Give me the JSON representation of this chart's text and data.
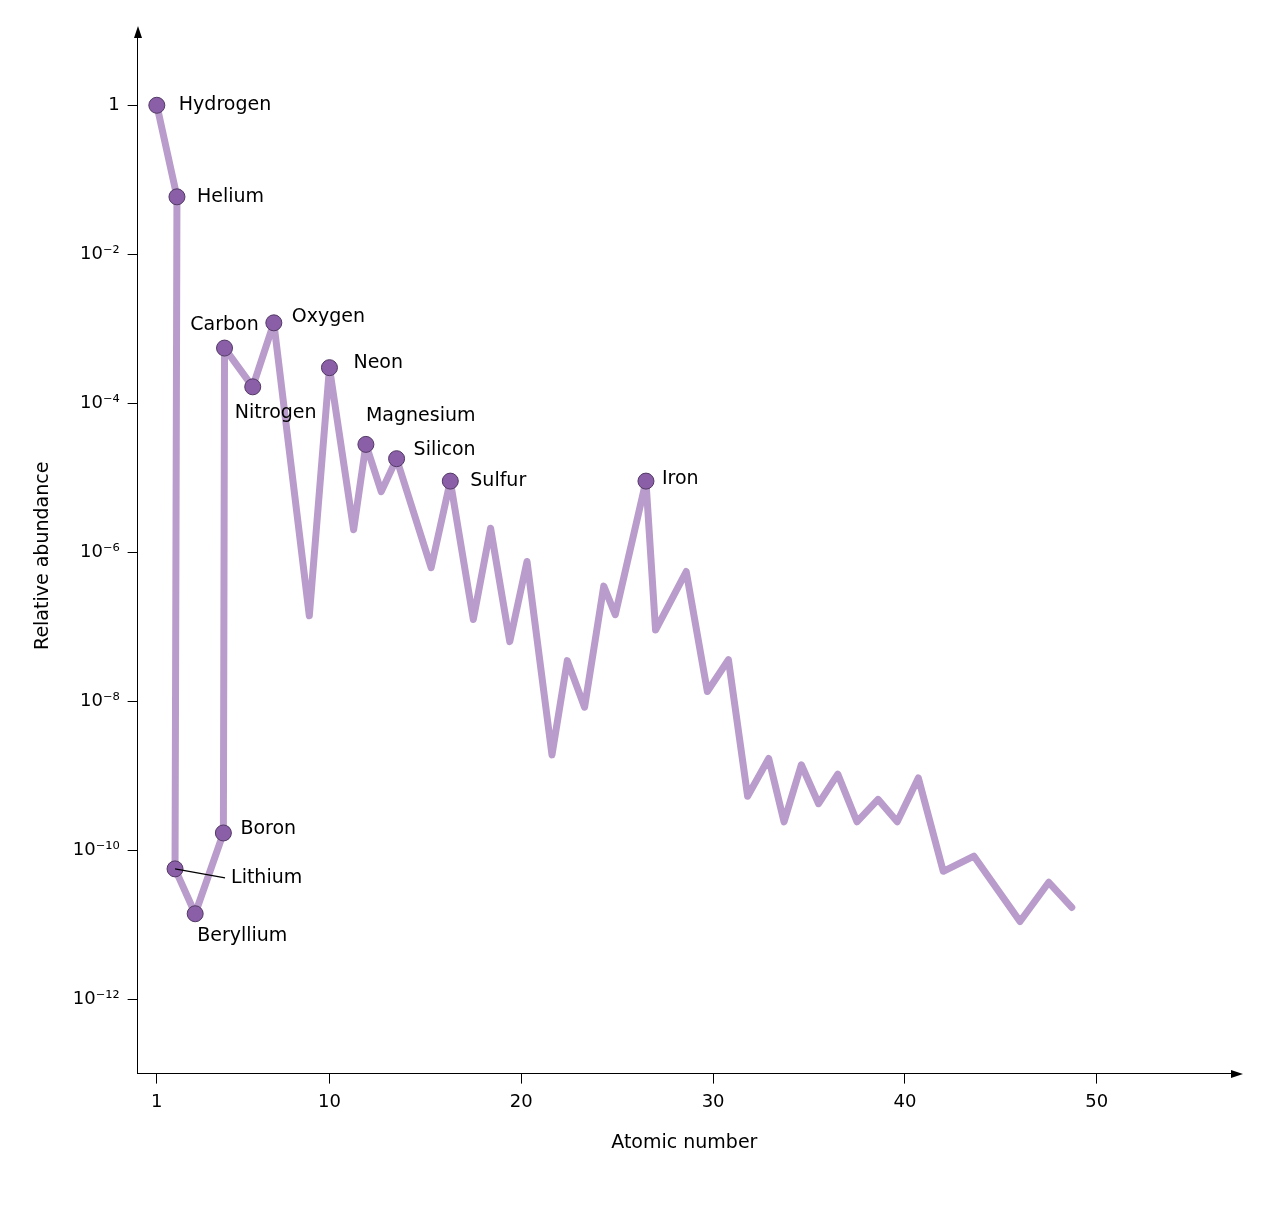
{
  "chart_data": {
    "type": "line",
    "xlabel": "Atomic number",
    "ylabel": "Relative abundance",
    "log": "y",
    "grid": false,
    "legend": false,
    "line_style": "solid",
    "xlim": [
      0,
      57
    ],
    "xticks": [
      1,
      10,
      20,
      30,
      40,
      50
    ],
    "ylim": [
      1e-13,
      8
    ],
    "yticks": [
      {
        "value": 1,
        "label": "1"
      },
      {
        "value": 0.01,
        "label": "10⁻²"
      },
      {
        "value": 0.0001,
        "label": "10⁻⁴"
      },
      {
        "value": 1e-06,
        "label": "10⁻⁶"
      },
      {
        "value": 1e-08,
        "label": "10⁻⁸"
      },
      {
        "value": 1e-10,
        "label": "10⁻¹⁰"
      },
      {
        "value": 1e-12,
        "label": "10⁻¹²"
      }
    ],
    "series": [
      {
        "type": "scatter",
        "marker": "circle",
        "color": "#8a5fa8",
        "x": [
          1.0,
          2.05,
          1.95,
          3.0,
          4.47,
          4.53,
          6.0,
          7.1,
          10,
          11.9,
          13.5,
          16.3,
          26.5
        ],
        "values": [
          1,
          0.059,
          5.6e-11,
          1.4e-11,
          1.7e-10,
          0.00055,
          0.000166,
          0.0012,
          0.0003,
          2.8e-05,
          1.8e-05,
          9e-06,
          9e-06
        ]
      },
      {
        "color": "#b99ccb",
        "marker": "none",
        "x": [
          1.0,
          2.05,
          1.95,
          3.0,
          4.47,
          4.53,
          6.0,
          7.1,
          8.95,
          10,
          11.26,
          11.9,
          12.7,
          13.5,
          15.3,
          16.3,
          17.5,
          18.4,
          19.4,
          20.3,
          21.6,
          22.4,
          23.3,
          24.3,
          24.9,
          26.5,
          27.0,
          28.6,
          29.7,
          30.8,
          31.8,
          32.9,
          33.7,
          34.6,
          35.5,
          36.5,
          37.5,
          38.6,
          39.6,
          40.7,
          42.0,
          43.6,
          46.0,
          47.5,
          48.7
        ],
        "values": [
          1,
          0.059,
          5.6e-11,
          1.4e-11,
          1.7e-10,
          0.00055,
          0.000166,
          0.0012,
          1.4e-07,
          0.0003,
          2e-06,
          2.8e-05,
          6.5e-06,
          1.8e-05,
          6.2e-07,
          9e-06,
          1.25e-07,
          2.1e-06,
          6.3e-08,
          7.5e-07,
          1.9e-09,
          3.5e-08,
          8.3e-09,
          3.5e-07,
          1.45e-07,
          9e-06,
          9e-08,
          5.5e-07,
          1.35e-08,
          3.6e-08,
          5.3e-10,
          1.7e-09,
          2.4e-10,
          1.4e-09,
          4.2e-10,
          1.05e-09,
          2.4e-10,
          4.8e-10,
          2.4e-10,
          9.3e-10,
          5.2e-11,
          8.3e-11,
          1.1e-11,
          3.7e-11,
          1.7e-11
        ]
      }
    ],
    "annotations": [
      {
        "text": "Hydrogen",
        "x": 1.0,
        "y": 1
      },
      {
        "text": "Helium",
        "x": 2.05,
        "y": 0.059
      },
      {
        "text": "Carbon",
        "x": 4.53,
        "y": 0.00055
      },
      {
        "text": "Oxygen",
        "x": 7.1,
        "y": 0.0012
      },
      {
        "text": "Nitrogen",
        "x": 6.0,
        "y": 0.000166
      },
      {
        "text": "Neon",
        "x": 10,
        "y": 0.0003
      },
      {
        "text": "Magnesium",
        "x": 11.9,
        "y": 2.8e-05
      },
      {
        "text": "Silicon",
        "x": 13.5,
        "y": 1.8e-05
      },
      {
        "text": "Sulfur",
        "x": 16.3,
        "y": 9e-06
      },
      {
        "text": "Iron",
        "x": 26.5,
        "y": 9e-06
      },
      {
        "text": "Boron",
        "x": 4.47,
        "y": 1.7e-10
      },
      {
        "text": "Lithium",
        "x": 1.95,
        "y": 5.6e-11
      },
      {
        "text": "Beryllium",
        "x": 3.0,
        "y": 1.4e-11
      }
    ]
  }
}
